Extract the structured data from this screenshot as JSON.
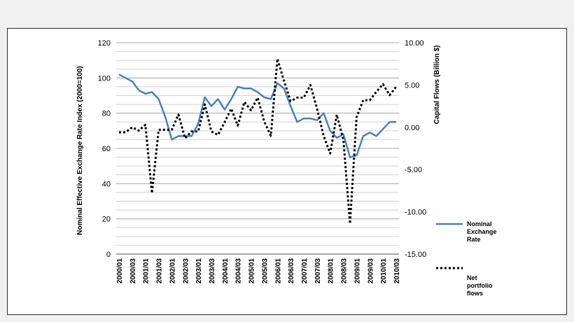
{
  "chart_data": {
    "type": "line",
    "ylabel_left": "Nominal Effective Exchange Rate Index  (2000=100)",
    "ylabel_right": "Capital Flows (Billion $)",
    "ylim_left": [
      0,
      120
    ],
    "ylim_right": [
      -15,
      10
    ],
    "yticks_left": [
      "0",
      "20",
      "40",
      "60",
      "80",
      "100",
      "120"
    ],
    "yticks_right": [
      "-15.00",
      "-10.00",
      "-5.00",
      "0.00",
      "5.00",
      "10.00"
    ],
    "grid": "horizontal",
    "legend_position": "right",
    "x": [
      "2000/01",
      "2000/02",
      "2000/03",
      "2000/04",
      "2001/01",
      "2001/02",
      "2001/03",
      "2001/04",
      "2002/01",
      "2002/02",
      "2002/03",
      "2002/04",
      "2003/01",
      "2003/02",
      "2003/03",
      "2003/04",
      "2004/01",
      "2004/02",
      "2004/03",
      "2004/04",
      "2005/01",
      "2005/02",
      "2005/03",
      "2005/04",
      "2006/01",
      "2006/02",
      "2006/03",
      "2006/04",
      "2007/01",
      "2007/02",
      "2007/03",
      "2007/04",
      "2008/01",
      "2008/02",
      "2008/03",
      "2008/04",
      "2009/01",
      "2009/02",
      "2009/03",
      "2009/04",
      "2010/01",
      "2010/02",
      "2010/03"
    ],
    "x_tick_labels": [
      "2000/01",
      "2000/03",
      "2001/01",
      "2001/03",
      "2002/01",
      "2002/03",
      "2003/01",
      "2003/03",
      "2004/01",
      "2004/03",
      "2005/01",
      "2005/03",
      "2006/01",
      "2006/03",
      "2007/01",
      "2007/03",
      "2008/01",
      "2008/03",
      "2009/01",
      "2009/03",
      "2010/01",
      "2010/03"
    ],
    "series": [
      {
        "name": "Nominal Exchange Rate",
        "axis": "left",
        "color": "#4f81bd",
        "style": "solid",
        "values": [
          102,
          100,
          98,
          93,
          91,
          92,
          88,
          78,
          65,
          67,
          67,
          67,
          74,
          89,
          84,
          88,
          82,
          88,
          95,
          94,
          94,
          92,
          89,
          88,
          97,
          94,
          84,
          75,
          77,
          77,
          76,
          80,
          70,
          66,
          68,
          55,
          56,
          67,
          69,
          67,
          71,
          75,
          75
        ]
      },
      {
        "name": "Net portfolio flows",
        "axis": "right",
        "color": "#000000",
        "style": "dotted",
        "values": [
          -0.6,
          -0.6,
          0.0,
          -0.4,
          0.3,
          -7.8,
          -0.3,
          -0.3,
          -0.3,
          1.5,
          -1.3,
          -0.5,
          -0.5,
          2.7,
          -0.5,
          -0.9,
          0.6,
          2.2,
          0.2,
          3.0,
          2.0,
          3.5,
          0.7,
          -1.0,
          8.1,
          5.5,
          3.1,
          3.5,
          3.5,
          5.0,
          2.2,
          -1.0,
          -3.1,
          1.5,
          -1.5,
          -11.4,
          1.2,
          3.2,
          3.2,
          4.2,
          5.1,
          3.8,
          4.8
        ]
      }
    ]
  }
}
